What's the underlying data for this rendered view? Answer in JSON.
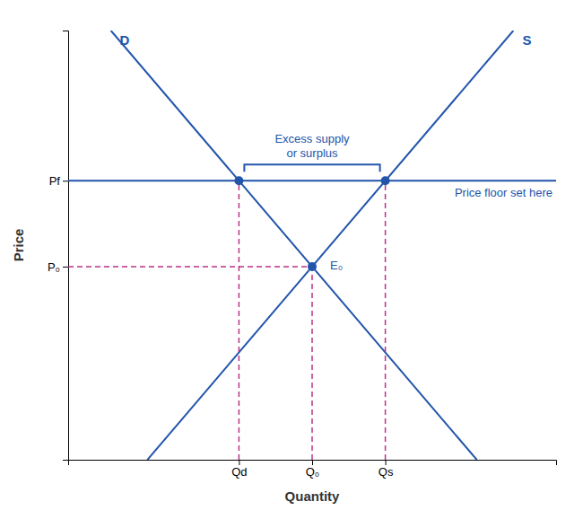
{
  "chart_data": {
    "type": "line",
    "xlabel": "Quantity",
    "ylabel": "Price",
    "xlim": [
      0,
      10
    ],
    "ylim": [
      0,
      10
    ],
    "xticks": [
      {
        "value": 3.5,
        "label": "Qd"
      },
      {
        "value": 5.0,
        "label": "Q₀"
      },
      {
        "value": 6.5,
        "label": "Qs"
      }
    ],
    "yticks": [
      {
        "value": 4.5,
        "label": "P₀"
      },
      {
        "value": 6.5,
        "label": "Pf"
      }
    ],
    "grid": false,
    "series": [
      {
        "name": "D",
        "color": "#2255aa",
        "x": [
          0.875,
          8.375
        ],
        "values": [
          10,
          0
        ]
      },
      {
        "name": "S",
        "color": "#2255aa",
        "x": [
          1.625,
          9.125
        ],
        "values": [
          0,
          10
        ]
      },
      {
        "name": "Price floor set here",
        "color": "#2255aa",
        "x": [
          0,
          10
        ],
        "values": [
          6.5,
          6.5
        ]
      },
      {
        "color": "#bb3388",
        "line_style": "dashed",
        "x": [
          3.5,
          3.5
        ],
        "values": [
          0,
          6.5
        ]
      },
      {
        "color": "#bb3388",
        "line_style": "dashed",
        "x": [
          5.0,
          5.0
        ],
        "values": [
          0,
          4.5
        ]
      },
      {
        "color": "#bb3388",
        "line_style": "dashed",
        "x": [
          6.5,
          6.5
        ],
        "values": [
          0,
          6.5
        ]
      },
      {
        "color": "#bb3388",
        "line_style": "dashed",
        "x": [
          0,
          5.0
        ],
        "values": [
          4.5,
          4.5
        ]
      },
      {
        "type": "scatter",
        "marker": "o",
        "color": "#2255aa",
        "x": [
          3.5,
          6.5,
          5.0
        ],
        "values": [
          6.5,
          6.5,
          4.5
        ]
      }
    ],
    "annotations": [
      {
        "text": "E₀",
        "x": 5.0,
        "y": 4.5
      },
      {
        "text": "Excess supply\nor surplus",
        "x": [
          3.5,
          6.5
        ],
        "y": 6.5
      }
    ]
  }
}
